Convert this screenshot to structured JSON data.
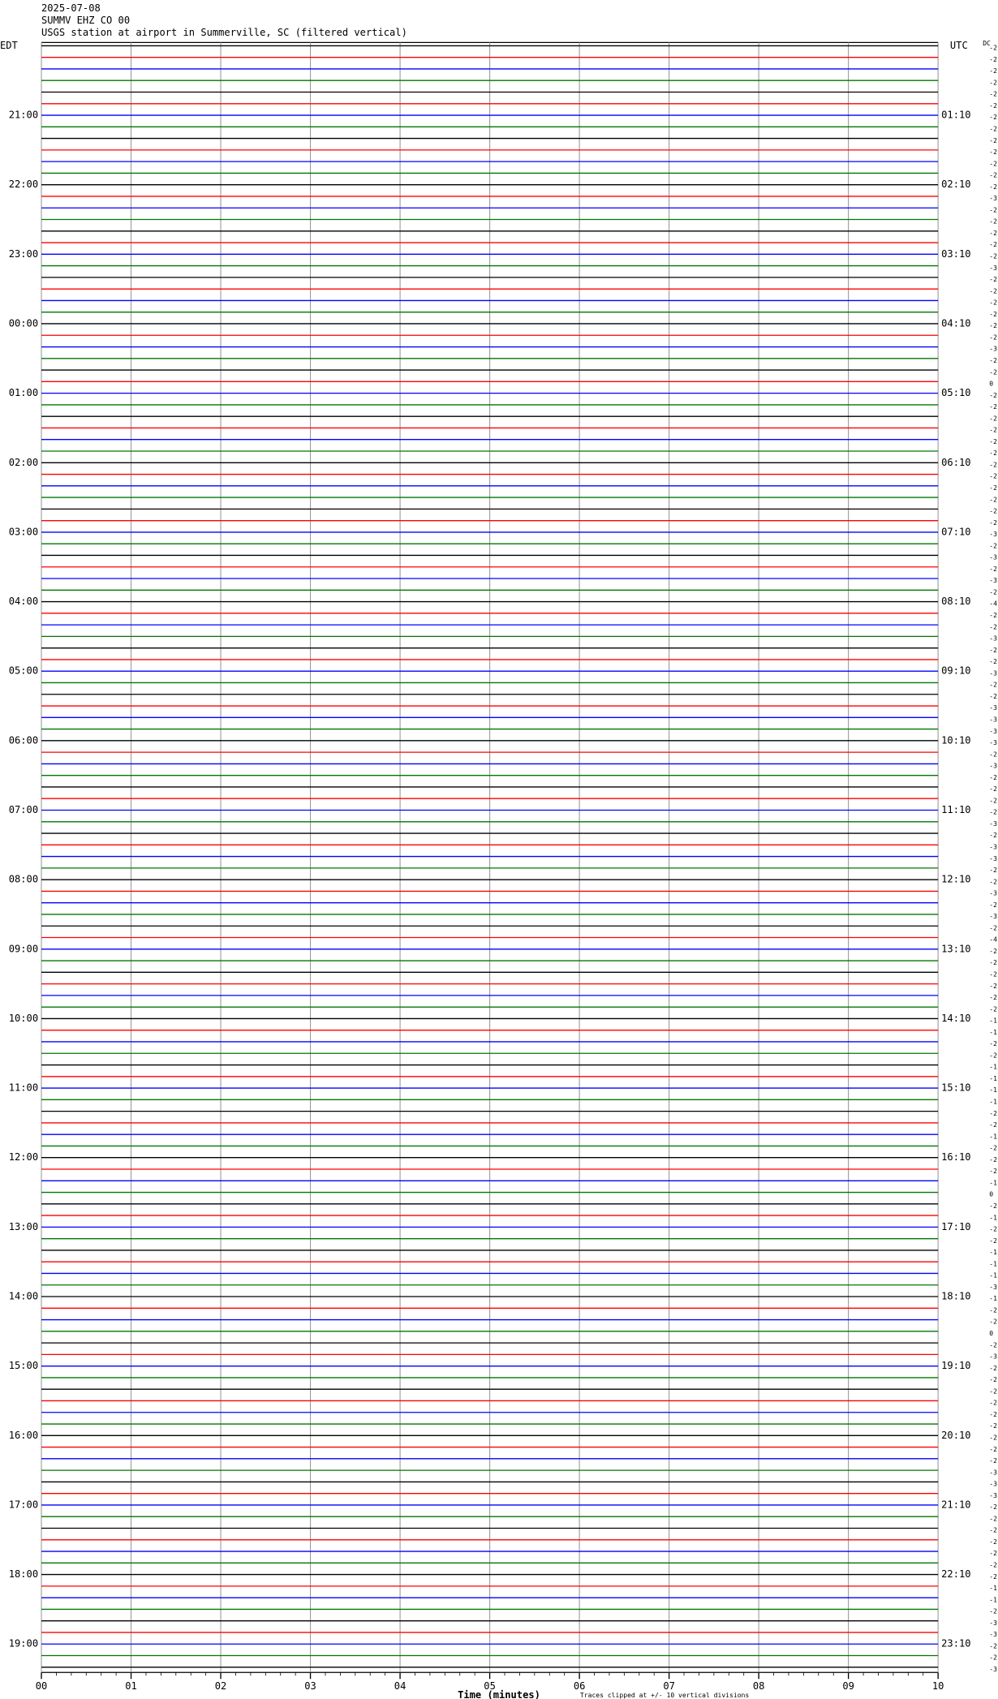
{
  "header": {
    "date": "2025-07-08",
    "station": "SUMMV EHZ CO 00",
    "description": "USGS station at airport in Summerville, SC (filtered vertical)"
  },
  "chart_data": {
    "type": "helicorder",
    "left_axis_label": "EDT",
    "right_axis_label": "UTC",
    "dc_label": "DC",
    "left_time_labels": [
      "21:00",
      "22:00",
      "23:00",
      "00:00",
      "01:00",
      "02:00",
      "03:00",
      "04:00",
      "05:00",
      "06:00",
      "07:00",
      "08:00",
      "09:00",
      "10:00",
      "11:00",
      "12:00",
      "13:00",
      "14:00",
      "15:00",
      "16:00",
      "17:00",
      "18:00",
      "19:00"
    ],
    "right_time_labels": [
      "01:10",
      "02:10",
      "03:10",
      "04:10",
      "05:10",
      "06:10",
      "07:10",
      "08:10",
      "09:10",
      "10:10",
      "11:10",
      "12:10",
      "13:10",
      "14:10",
      "15:10",
      "16:10",
      "17:10",
      "18:10",
      "19:10",
      "20:10",
      "21:10",
      "22:10",
      "23:10"
    ],
    "dc_offsets": [
      -2,
      -2,
      -2,
      -2,
      -2,
      -2,
      -2,
      -2,
      -2,
      -2,
      -2,
      -2,
      -2,
      -3,
      -2,
      -2,
      -2,
      -2,
      -2,
      -3,
      -2,
      -2,
      -2,
      -2,
      -2,
      -2,
      -3,
      -2,
      -2,
      0,
      -2,
      -2,
      -2,
      -2,
      -2,
      -2,
      -2,
      -2,
      -2,
      -2,
      -2,
      -2,
      -3,
      -2,
      -3,
      -2,
      -3,
      -2,
      -4,
      -2,
      -2,
      -3,
      -2,
      -2,
      -3,
      -2,
      -2,
      -3,
      -3,
      -3,
      -3,
      -2,
      -3,
      -2,
      -2,
      -2,
      -2,
      -3,
      -2,
      -3,
      -3,
      -2,
      -2,
      -3,
      -2,
      -3,
      -2,
      -4,
      -2,
      -2,
      -2,
      -2,
      -2,
      -2,
      -1,
      -1,
      -2,
      -2,
      -1,
      -1,
      -1,
      -1,
      -2,
      -2,
      -1,
      -2,
      -2,
      -2,
      -1,
      0,
      -2,
      -1,
      -2,
      -2,
      -1,
      -1,
      -1,
      -3,
      -1,
      -2,
      -2,
      0,
      -2,
      -3,
      -2,
      -2,
      -2,
      -2,
      -2,
      -2,
      -2,
      -2,
      -2,
      -3,
      -3,
      -3,
      -2,
      -2,
      -2,
      -2,
      -2,
      -2,
      -2,
      -1,
      -1,
      -2,
      -3,
      -3,
      -2,
      -2,
      -3
    ],
    "trace_colors": [
      "#000000",
      "#ff0000",
      "#0000ff",
      "#007700"
    ],
    "x_label": "Time (minutes)",
    "xlim": [
      0,
      10
    ],
    "xticks": [
      {
        "value": 0,
        "label": "00"
      },
      {
        "value": 1,
        "label": "01"
      },
      {
        "value": 2,
        "label": "02"
      },
      {
        "value": 3,
        "label": "03"
      },
      {
        "value": 4,
        "label": "04"
      },
      {
        "value": 5,
        "label": "05"
      },
      {
        "value": 6,
        "label": "06"
      },
      {
        "value": 7,
        "label": "07"
      },
      {
        "value": 8,
        "label": "08"
      },
      {
        "value": 9,
        "label": "09"
      },
      10
    ],
    "grid": true,
    "note": "Traces clipped at +/- 10 vertical divisions"
  }
}
